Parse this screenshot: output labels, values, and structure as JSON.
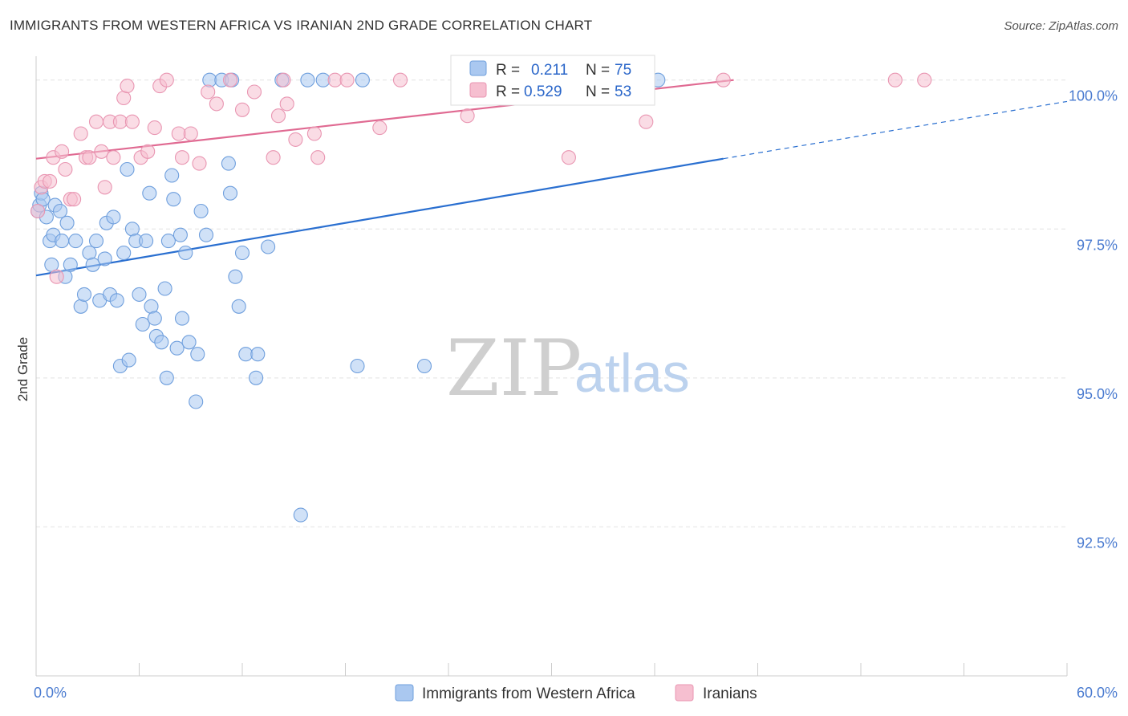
{
  "title": "IMMIGRANTS FROM WESTERN AFRICA VS IRANIAN 2ND GRADE CORRELATION CHART",
  "source": "Source: ZipAtlas.com",
  "watermark": {
    "zip": "ZIP",
    "atlas": "atlas"
  },
  "colors": {
    "blue_fill": "#aac8f0",
    "blue_stroke": "#6f9fdd",
    "blue_line": "#2a6fd0",
    "pink_fill": "#f6bfd0",
    "pink_stroke": "#e996b2",
    "pink_line": "#e06a92",
    "grid": "#e2e2e2",
    "tick_text": "#4a7bd0"
  },
  "legend": {
    "rows": [
      {
        "r_label": "R =",
        "r_value": "0.211",
        "n_label": "N =",
        "n_value": "75"
      },
      {
        "r_label": "R =",
        "r_value": "0.529",
        "n_label": "N =",
        "n_value": "53"
      }
    ]
  },
  "chart_data": {
    "type": "scatter",
    "title": "IMMIGRANTS FROM WESTERN AFRICA VS IRANIAN 2ND GRADE CORRELATION CHART",
    "xlabel": "",
    "ylabel": "2nd Grade",
    "xlim": [
      0,
      60
    ],
    "ylim": [
      90.0,
      100.4
    ],
    "x_tick_labels": [
      "0.0%",
      "60.0%"
    ],
    "y_ticks": [
      92.5,
      95.0,
      97.5,
      100.0
    ],
    "y_tick_labels": [
      "92.5%",
      "95.0%",
      "97.5%",
      "100.0%"
    ],
    "series": [
      {
        "name": "Immigrants from Western Africa",
        "color": "blue",
        "trend": {
          "x0": 0,
          "y0": 96.72,
          "x1": 40,
          "y1": 98.68,
          "dash_to_x": 60,
          "dash_to_y": 99.64
        },
        "points": [
          [
            0.1,
            97.8
          ],
          [
            0.2,
            97.9
          ],
          [
            0.3,
            98.1
          ],
          [
            0.4,
            98.0
          ],
          [
            0.6,
            97.7
          ],
          [
            0.8,
            97.3
          ],
          [
            0.9,
            96.9
          ],
          [
            1.0,
            97.4
          ],
          [
            1.1,
            97.9
          ],
          [
            1.4,
            97.8
          ],
          [
            1.5,
            97.3
          ],
          [
            1.7,
            96.7
          ],
          [
            1.8,
            97.6
          ],
          [
            2.0,
            96.9
          ],
          [
            2.3,
            97.3
          ],
          [
            2.6,
            96.2
          ],
          [
            2.8,
            96.4
          ],
          [
            3.1,
            97.1
          ],
          [
            3.3,
            96.9
          ],
          [
            3.5,
            97.3
          ],
          [
            3.7,
            96.3
          ],
          [
            4.0,
            97.0
          ],
          [
            4.1,
            97.6
          ],
          [
            4.3,
            96.4
          ],
          [
            4.5,
            97.7
          ],
          [
            4.7,
            96.3
          ],
          [
            4.9,
            95.2
          ],
          [
            5.1,
            97.1
          ],
          [
            5.3,
            98.5
          ],
          [
            5.4,
            95.3
          ],
          [
            5.6,
            97.5
          ],
          [
            5.8,
            97.3
          ],
          [
            6.0,
            96.4
          ],
          [
            6.2,
            95.9
          ],
          [
            6.4,
            97.3
          ],
          [
            6.6,
            98.1
          ],
          [
            6.7,
            96.2
          ],
          [
            6.9,
            96.0
          ],
          [
            7.0,
            95.7
          ],
          [
            7.3,
            95.6
          ],
          [
            7.5,
            96.5
          ],
          [
            7.6,
            95.0
          ],
          [
            7.7,
            97.3
          ],
          [
            7.9,
            98.4
          ],
          [
            8.0,
            98.0
          ],
          [
            8.2,
            95.5
          ],
          [
            8.4,
            97.4
          ],
          [
            8.5,
            96.0
          ],
          [
            8.7,
            97.1
          ],
          [
            8.9,
            95.6
          ],
          [
            9.3,
            94.6
          ],
          [
            9.4,
            95.4
          ],
          [
            9.6,
            97.8
          ],
          [
            9.9,
            97.4
          ],
          [
            10.1,
            100.0
          ],
          [
            10.8,
            100.0
          ],
          [
            11.2,
            98.6
          ],
          [
            11.3,
            98.1
          ],
          [
            11.4,
            100.0
          ],
          [
            11.6,
            96.7
          ],
          [
            11.8,
            96.2
          ],
          [
            12.0,
            97.1
          ],
          [
            12.2,
            95.4
          ],
          [
            12.8,
            95.0
          ],
          [
            12.9,
            95.4
          ],
          [
            13.5,
            97.2
          ],
          [
            14.3,
            100.0
          ],
          [
            15.4,
            92.7
          ],
          [
            15.8,
            100.0
          ],
          [
            16.7,
            100.0
          ],
          [
            18.7,
            95.2
          ],
          [
            19.0,
            100.0
          ],
          [
            22.6,
            95.2
          ],
          [
            33.0,
            100.0
          ],
          [
            36.2,
            100.0
          ]
        ]
      },
      {
        "name": "Iranians",
        "color": "pink",
        "trend": {
          "x0": 0,
          "y0": 98.68,
          "x1": 40.6,
          "y1": 100.0
        },
        "points": [
          [
            0.1,
            97.8
          ],
          [
            0.3,
            98.2
          ],
          [
            0.5,
            98.3
          ],
          [
            0.8,
            98.3
          ],
          [
            1.0,
            98.7
          ],
          [
            1.2,
            96.7
          ],
          [
            1.5,
            98.8
          ],
          [
            1.7,
            98.5
          ],
          [
            2.0,
            98.0
          ],
          [
            2.2,
            98.0
          ],
          [
            2.6,
            99.1
          ],
          [
            2.9,
            98.7
          ],
          [
            3.1,
            98.7
          ],
          [
            3.5,
            99.3
          ],
          [
            3.8,
            98.8
          ],
          [
            4.0,
            98.2
          ],
          [
            4.3,
            99.3
          ],
          [
            4.5,
            98.7
          ],
          [
            4.9,
            99.3
          ],
          [
            5.1,
            99.7
          ],
          [
            5.3,
            99.9
          ],
          [
            5.6,
            99.3
          ],
          [
            6.1,
            98.7
          ],
          [
            6.5,
            98.8
          ],
          [
            6.9,
            99.2
          ],
          [
            7.2,
            99.9
          ],
          [
            7.6,
            100.0
          ],
          [
            8.3,
            99.1
          ],
          [
            8.5,
            98.7
          ],
          [
            9.0,
            99.1
          ],
          [
            9.5,
            98.6
          ],
          [
            10.0,
            99.8
          ],
          [
            10.5,
            99.6
          ],
          [
            11.3,
            100.0
          ],
          [
            12.0,
            99.5
          ],
          [
            12.7,
            99.8
          ],
          [
            13.8,
            98.7
          ],
          [
            14.1,
            99.4
          ],
          [
            14.4,
            100.0
          ],
          [
            14.6,
            99.6
          ],
          [
            15.1,
            99.0
          ],
          [
            16.2,
            99.1
          ],
          [
            16.4,
            98.7
          ],
          [
            17.4,
            100.0
          ],
          [
            18.1,
            100.0
          ],
          [
            20.0,
            99.2
          ],
          [
            21.2,
            100.0
          ],
          [
            25.1,
            99.4
          ],
          [
            31.0,
            98.7
          ],
          [
            35.5,
            99.3
          ],
          [
            40.0,
            100.0
          ],
          [
            50.0,
            100.0
          ],
          [
            51.7,
            100.0
          ]
        ]
      }
    ],
    "legend_position": "top-center"
  }
}
